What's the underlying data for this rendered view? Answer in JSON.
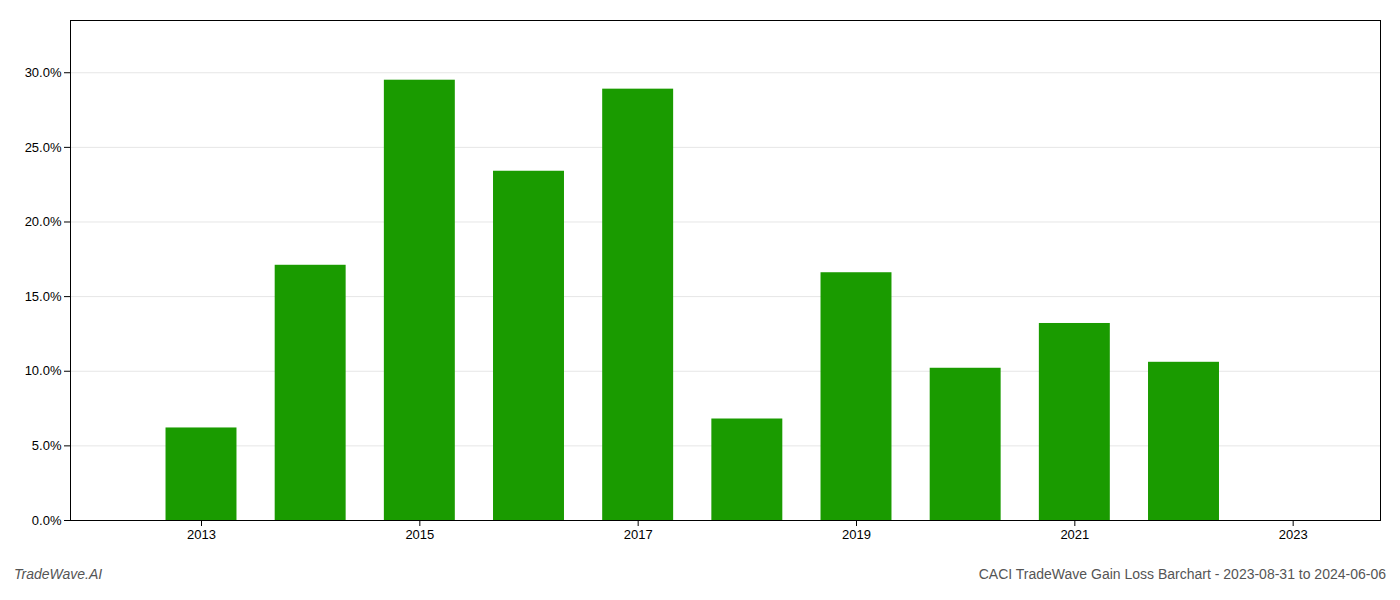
{
  "chart_data": {
    "type": "bar",
    "x": [
      2013,
      2014,
      2015,
      2016,
      2017,
      2018,
      2019,
      2020,
      2021,
      2022
    ],
    "values": [
      0.062,
      0.171,
      0.295,
      0.234,
      0.289,
      0.068,
      0.166,
      0.102,
      0.132,
      0.106
    ],
    "color": "#1a9b00",
    "xlim": [
      2011.8,
      2023.8
    ],
    "xticks": [
      2013,
      2015,
      2017,
      2019,
      2021,
      2023
    ],
    "ylim": [
      0,
      0.335
    ],
    "yticks": [
      {
        "value": 0.0,
        "label": "0.0%"
      },
      {
        "value": 0.05,
        "label": "5.0%"
      },
      {
        "value": 0.1,
        "label": "10.0%"
      },
      {
        "value": 0.15,
        "label": "15.0%"
      },
      {
        "value": 0.2,
        "label": "20.0%"
      },
      {
        "value": 0.25,
        "label": "25.0%"
      },
      {
        "value": 0.3,
        "label": "30.0%"
      }
    ],
    "grid": true,
    "annotations": [
      "TradeWave.AI",
      "CACI TradeWave Gain Loss Barchart - 2023-08-31 to 2024-06-06"
    ]
  }
}
